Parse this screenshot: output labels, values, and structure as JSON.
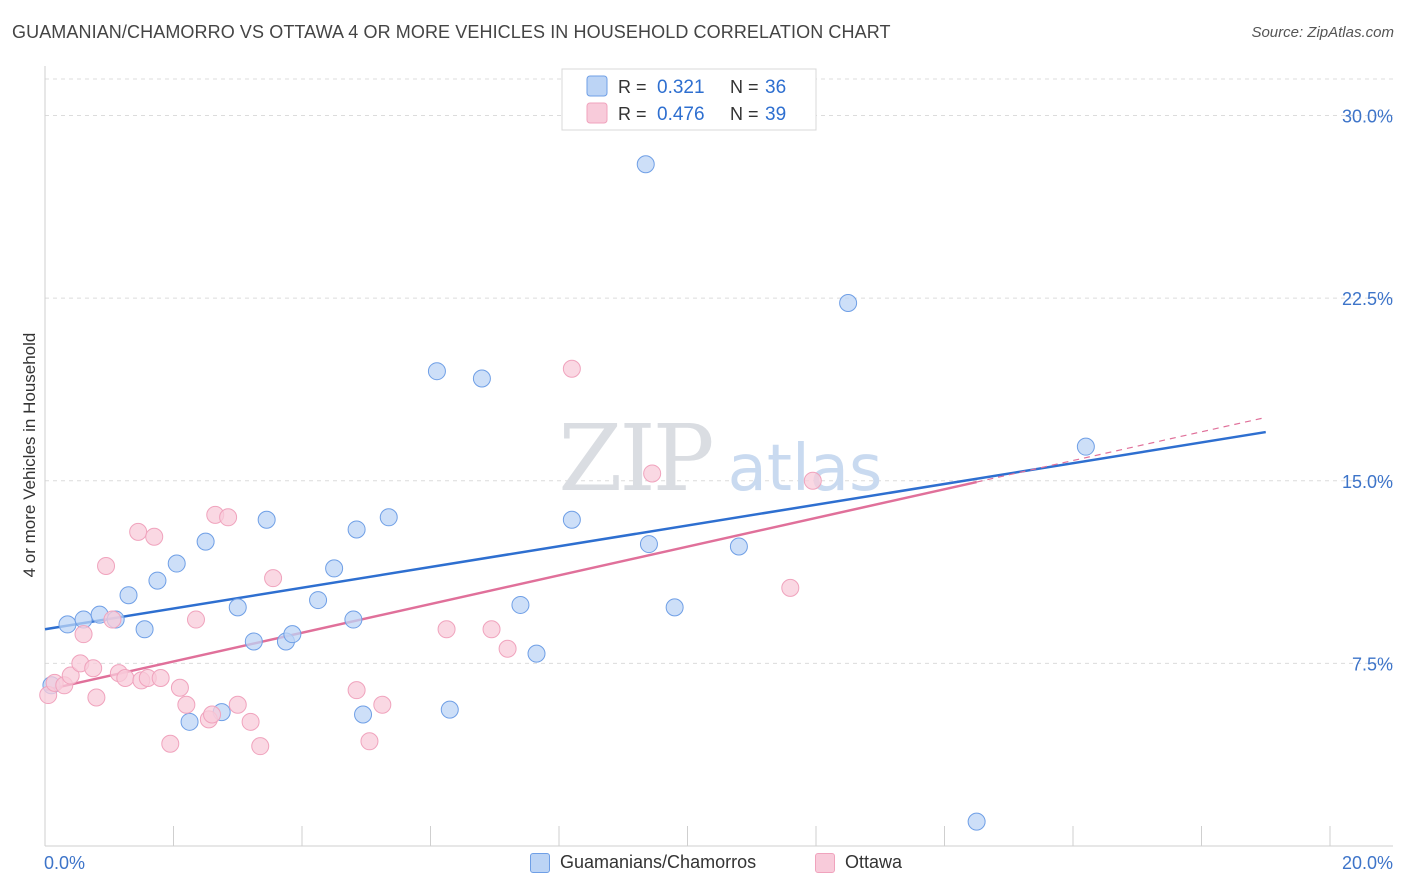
{
  "title": "GUAMANIAN/CHAMORRO VS OTTAWA 4 OR MORE VEHICLES IN HOUSEHOLD CORRELATION CHART",
  "source": "Source: ZipAtlas.com",
  "watermark": {
    "zip": "ZIP",
    "atlas": "atlas"
  },
  "legend_top": [
    {
      "r_label": "R =",
      "r_value": "0.321",
      "n_label": "N =",
      "n_value": "36"
    },
    {
      "r_label": "R =",
      "r_value": "0.476",
      "n_label": "N =",
      "n_value": "39"
    }
  ],
  "chart_data": {
    "type": "scatter",
    "ylabel": "4 or more Vehicles in Household",
    "xlim": [
      0,
      20
    ],
    "ylim": [
      0,
      31.5
    ],
    "x_tick_labels": [
      "0.0%",
      "20.0%"
    ],
    "y_ticks": [
      7.5,
      15.0,
      22.5,
      30.0
    ],
    "y_tick_labels": [
      "7.5%",
      "15.0%",
      "22.5%",
      "30.0%"
    ],
    "grid": true,
    "legend_position": "top-center",
    "series": [
      {
        "name": "Guamanians/Chamorros",
        "color": "#6f9fe6",
        "fill": "#bcd4f5",
        "line_color": "#2e6fd0",
        "trend": {
          "x0": 0,
          "y0": 8.9,
          "x1": 19.0,
          "y1": 17.0,
          "dash_from": null
        },
        "points": [
          [
            0.1,
            6.6
          ],
          [
            0.35,
            9.1
          ],
          [
            0.6,
            9.3
          ],
          [
            0.85,
            9.5
          ],
          [
            1.1,
            9.3
          ],
          [
            1.3,
            10.3
          ],
          [
            1.55,
            8.9
          ],
          [
            1.75,
            10.9
          ],
          [
            2.05,
            11.6
          ],
          [
            2.25,
            5.1
          ],
          [
            2.5,
            12.5
          ],
          [
            2.75,
            5.5
          ],
          [
            3.0,
            9.8
          ],
          [
            3.25,
            8.4
          ],
          [
            3.45,
            13.4
          ],
          [
            3.75,
            8.4
          ],
          [
            3.85,
            8.7
          ],
          [
            4.25,
            10.1
          ],
          [
            4.5,
            11.4
          ],
          [
            4.8,
            9.3
          ],
          [
            4.85,
            13.0
          ],
          [
            4.95,
            5.4
          ],
          [
            5.35,
            13.5
          ],
          [
            6.1,
            19.5
          ],
          [
            6.3,
            5.6
          ],
          [
            6.8,
            19.2
          ],
          [
            7.4,
            9.9
          ],
          [
            7.65,
            7.9
          ],
          [
            8.2,
            13.4
          ],
          [
            9.35,
            28.0
          ],
          [
            9.4,
            12.4
          ],
          [
            9.8,
            9.8
          ],
          [
            10.8,
            12.3
          ],
          [
            12.5,
            22.3
          ],
          [
            14.5,
            1.0
          ],
          [
            16.2,
            16.4
          ]
        ]
      },
      {
        "name": "Ottawa",
        "color": "#f0a3bd",
        "fill": "#f8cbda",
        "line_color": "#e0709a",
        "trend": {
          "x0": 0,
          "y0": 6.4,
          "x1": 19.0,
          "y1": 17.6,
          "dash_from": 14.5
        },
        "points": [
          [
            0.05,
            6.2
          ],
          [
            0.15,
            6.7
          ],
          [
            0.3,
            6.6
          ],
          [
            0.4,
            7.0
          ],
          [
            0.55,
            7.5
          ],
          [
            0.6,
            8.7
          ],
          [
            0.75,
            7.3
          ],
          [
            0.8,
            6.1
          ],
          [
            0.95,
            11.5
          ],
          [
            1.05,
            9.3
          ],
          [
            1.15,
            7.1
          ],
          [
            1.25,
            6.9
          ],
          [
            1.45,
            12.9
          ],
          [
            1.5,
            6.8
          ],
          [
            1.6,
            6.9
          ],
          [
            1.7,
            12.7
          ],
          [
            1.8,
            6.9
          ],
          [
            1.95,
            4.2
          ],
          [
            2.1,
            6.5
          ],
          [
            2.2,
            5.8
          ],
          [
            2.35,
            9.3
          ],
          [
            2.55,
            5.2
          ],
          [
            2.6,
            5.4
          ],
          [
            2.65,
            13.6
          ],
          [
            2.85,
            13.5
          ],
          [
            3.0,
            5.8
          ],
          [
            3.2,
            5.1
          ],
          [
            3.35,
            4.1
          ],
          [
            3.55,
            11.0
          ],
          [
            4.85,
            6.4
          ],
          [
            5.05,
            4.3
          ],
          [
            5.25,
            5.8
          ],
          [
            6.25,
            8.9
          ],
          [
            6.95,
            8.9
          ],
          [
            7.2,
            8.1
          ],
          [
            8.2,
            19.6
          ],
          [
            9.45,
            15.3
          ],
          [
            11.6,
            10.6
          ],
          [
            11.95,
            15.0
          ]
        ]
      }
    ]
  }
}
